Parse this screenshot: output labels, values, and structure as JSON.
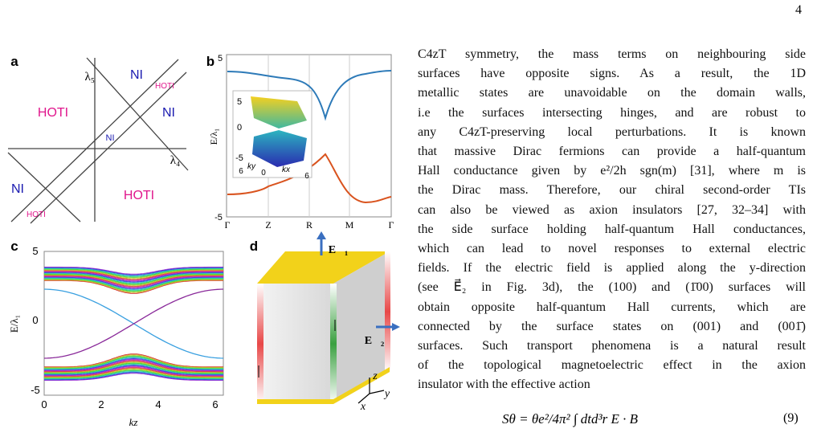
{
  "page_number": "4",
  "figure": {
    "panel_a": {
      "label": "a",
      "axis_y": "λ₅",
      "axis_x": "λ₄",
      "regions": [
        "NI",
        "HOTI",
        "HOTI",
        "NI",
        "NI",
        "NI",
        "HOTI",
        "HOTI"
      ]
    },
    "panel_b": {
      "label": "b",
      "y_label": "E/λ₁",
      "y_ticks": [
        "5",
        "-5"
      ],
      "x_ticks": [
        "Γ",
        "Z",
        "R",
        "M",
        "Γ"
      ],
      "inset": {
        "z_ticks": [
          "5",
          "0",
          "-5"
        ],
        "ky_ticks": [
          "6",
          "0"
        ],
        "ky_label": "ky",
        "kx_label": "kx",
        "kx_tick": "6"
      }
    },
    "panel_c": {
      "label": "c",
      "y_label": "E/λ₁",
      "y_ticks": [
        "5",
        "0",
        "-5"
      ],
      "x_ticks": [
        "0",
        "2",
        "4",
        "6"
      ],
      "x_label": "kz"
    },
    "panel_d": {
      "label": "d",
      "field_1": "E⃗₁",
      "field_2": "E⃗₂",
      "axes": [
        "z",
        "y",
        "x"
      ]
    }
  },
  "paragraph": [
    "C4zT symmetry, the mass terms on neighbouring side",
    "surfaces have opposite signs.   As a result, the 1D",
    "metallic states are unavoidable on the domain walls,",
    "i.e the surfaces intersecting hinges, and are robust to",
    "any C4zT-preserving local perturbations.  It is known",
    "that massive Dirac fermions can provide a half-quantum",
    "Hall conductance given by e²/2h sgn(m) [31], where m is",
    "the Dirac mass. Therefore, our chiral second-order TIs",
    "can also be viewed as axion insulators [27, 32–34] with",
    "the side surface holding half-quantum Hall conductances,",
    "which can lead to novel responses to external electric",
    "fields. If the electric field is applied along the y-direction",
    "(see E⃗₂ in Fig. 3d), the (100) and (1̄00) surfaces will",
    "obtain opposite half-quantum Hall currents, which are",
    "connected by the surface states on (001) and (001̄)",
    "surfaces. Such transport phenomena is a natural result",
    "of the topological magnetoelectric effect in the axion",
    "insulator with the effective action"
  ],
  "equation": {
    "text": "Sθ = θe²/4π² ∫ dtd³r E · B",
    "number": "(9)"
  }
}
